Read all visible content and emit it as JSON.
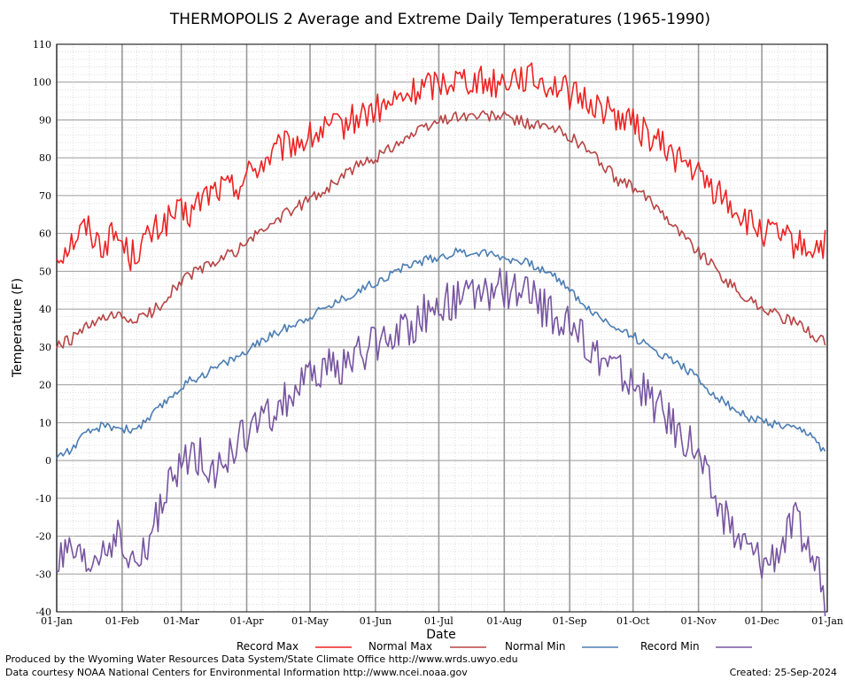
{
  "chart_data": {
    "type": "line",
    "title": "THERMOPOLIS 2 Average and Extreme Daily Temperatures (1965-1990)",
    "xlabel": "Date",
    "ylabel": "Temperature (F)",
    "ylim": [
      -40,
      110
    ],
    "yticks": [
      "110",
      "100",
      "90",
      "80",
      "70",
      "60",
      "50",
      "40",
      "30",
      "20",
      "10",
      "0",
      "-10",
      "-20",
      "-30",
      "-40"
    ],
    "xticks": [
      "01-Jan",
      "01-Feb",
      "01-Mar",
      "01-Apr",
      "01-May",
      "01-Jun",
      "01-Jul",
      "01-Aug",
      "01-Sep",
      "01-Oct",
      "01-Nov",
      "01-Dec",
      "01-Jan"
    ],
    "xtick_days": [
      1,
      32,
      60,
      91,
      121,
      152,
      182,
      213,
      244,
      274,
      305,
      335,
      366
    ],
    "grid": true,
    "legend_position": "bottom",
    "series": [
      {
        "name": "Record Max",
        "color": "#ee2222",
        "x": [
          1,
          8,
          15,
          22,
          29,
          36,
          43,
          50,
          57,
          64,
          71,
          78,
          85,
          92,
          99,
          106,
          113,
          120,
          127,
          134,
          141,
          148,
          155,
          162,
          169,
          176,
          183,
          190,
          197,
          204,
          211,
          218,
          225,
          232,
          239,
          246,
          253,
          260,
          267,
          274,
          281,
          288,
          295,
          302,
          309,
          316,
          323,
          330,
          337,
          344,
          351,
          358,
          365
        ],
        "values": [
          54,
          58,
          62,
          57,
          60,
          54,
          58,
          62,
          65,
          65,
          70,
          72,
          72,
          76,
          79,
          82,
          84,
          85,
          87,
          88,
          90,
          92,
          93,
          95,
          97,
          99,
          100,
          101,
          101,
          100,
          100,
          102,
          101,
          100,
          99,
          96,
          95,
          93,
          91,
          89,
          86,
          83,
          80,
          77,
          73,
          70,
          66,
          62,
          60,
          59,
          57,
          56,
          57
        ]
      },
      {
        "name": "Normal Max",
        "color": "#b84444",
        "x": [
          1,
          8,
          15,
          22,
          29,
          36,
          43,
          50,
          57,
          64,
          71,
          78,
          85,
          92,
          99,
          106,
          113,
          120,
          127,
          134,
          141,
          148,
          155,
          162,
          169,
          176,
          183,
          190,
          197,
          204,
          211,
          218,
          225,
          232,
          239,
          246,
          253,
          260,
          267,
          274,
          281,
          288,
          295,
          302,
          309,
          316,
          323,
          330,
          337,
          344,
          351,
          358,
          365
        ],
        "values": [
          30,
          32,
          35,
          37,
          38,
          37,
          38,
          41,
          46,
          49,
          51,
          53,
          55,
          58,
          61,
          64,
          66,
          69,
          71,
          74,
          77,
          79,
          81,
          84,
          86,
          88,
          90,
          91,
          91,
          91,
          91,
          90,
          89,
          88,
          87,
          85,
          82,
          78,
          74,
          72,
          69,
          66,
          61,
          57,
          53,
          49,
          45,
          42,
          40,
          38,
          36,
          34,
          31
        ]
      },
      {
        "name": "Normal Min",
        "color": "#4b7db3",
        "x": [
          1,
          8,
          15,
          22,
          29,
          36,
          43,
          50,
          57,
          64,
          71,
          78,
          85,
          92,
          99,
          106,
          113,
          120,
          127,
          134,
          141,
          148,
          155,
          162,
          169,
          176,
          183,
          190,
          197,
          204,
          211,
          218,
          225,
          232,
          239,
          246,
          253,
          260,
          267,
          274,
          281,
          288,
          295,
          302,
          309,
          316,
          323,
          330,
          337,
          344,
          351,
          358,
          365
        ],
        "values": [
          1,
          3,
          7,
          9,
          9,
          8,
          10,
          14,
          18,
          21,
          23,
          25,
          27,
          29,
          32,
          34,
          36,
          38,
          40,
          42,
          44,
          46,
          48,
          50,
          52,
          53,
          54,
          55,
          55,
          55,
          54,
          53,
          52,
          50,
          48,
          44,
          40,
          37,
          35,
          33,
          30,
          28,
          26,
          23,
          19,
          16,
          13,
          11,
          10,
          9,
          8,
          7,
          2
        ]
      },
      {
        "name": "Record Min",
        "color": "#7755a0",
        "x": [
          1,
          8,
          15,
          22,
          29,
          36,
          43,
          50,
          57,
          64,
          71,
          78,
          85,
          92,
          99,
          106,
          113,
          120,
          127,
          134,
          141,
          148,
          155,
          162,
          169,
          176,
          183,
          190,
          197,
          204,
          211,
          218,
          225,
          232,
          239,
          246,
          253,
          260,
          267,
          274,
          281,
          288,
          295,
          302,
          309,
          316,
          323,
          330,
          337,
          344,
          351,
          358,
          365
        ],
        "values": [
          -27,
          -25,
          -29,
          -24,
          -20,
          -28,
          -25,
          -12,
          -5,
          2,
          0,
          -3,
          3,
          8,
          10,
          14,
          18,
          21,
          24,
          25,
          27,
          29,
          32,
          34,
          36,
          39,
          41,
          42,
          43,
          44,
          46,
          45,
          43,
          40,
          37,
          34,
          30,
          27,
          24,
          20,
          17,
          13,
          8,
          5,
          -5,
          -14,
          -20,
          -24,
          -27,
          -22,
          -16,
          -24,
          -36
        ]
      }
    ]
  },
  "legend": {
    "items": [
      {
        "label": "Record Max",
        "color": "#ee2222"
      },
      {
        "label": "Normal Max",
        "color": "#b84444"
      },
      {
        "label": "Normal Min",
        "color": "#4b7db3"
      },
      {
        "label": "Record Min",
        "color": "#7755a0"
      }
    ]
  },
  "footer": {
    "line1": "Produced by the Wyoming Water Resources Data System/State Climate Office http://www.wrds.uwyo.edu",
    "line2": "Data courtesy NOAA National Centers for Environmental Information http://www.ncei.noaa.gov",
    "created": "Created:  25-Sep-2024"
  }
}
